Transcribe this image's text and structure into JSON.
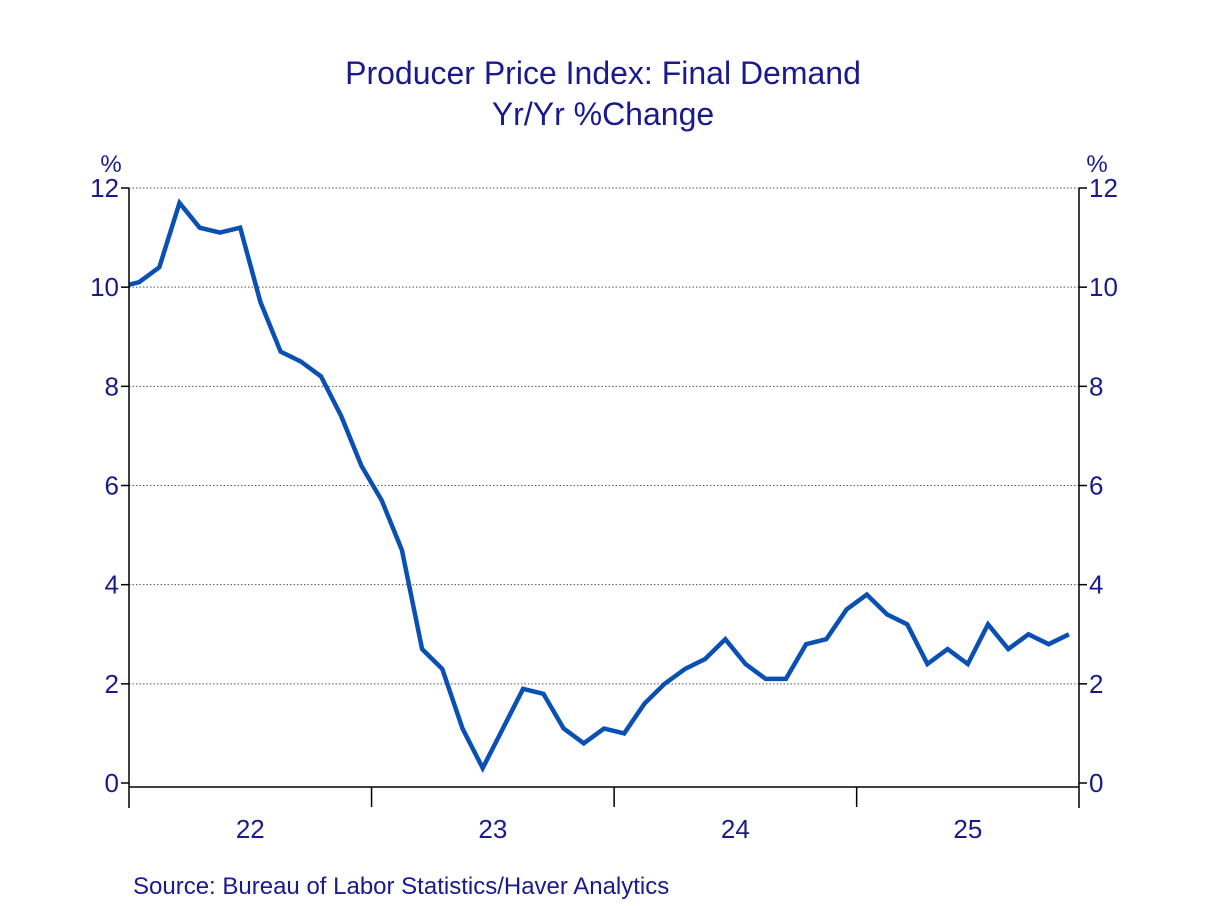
{
  "chart_data": {
    "type": "line",
    "title": "Producer Price Index: Final Demand",
    "subtitle": "Yr/Yr %Change",
    "ylabel_left": "%",
    "ylabel_right": "%",
    "ylim": [
      0,
      12
    ],
    "yticks": [
      0,
      2,
      4,
      6,
      8,
      10,
      12
    ],
    "xtick_labels": [
      "22",
      "23",
      "24",
      "25"
    ],
    "grid": true,
    "line_color": "#0a50b4",
    "source": "Source:  Bureau of Labor Statistics/Haver Analytics",
    "x": [
      "2021-12",
      "2022-01",
      "2022-02",
      "2022-03",
      "2022-04",
      "2022-05",
      "2022-06",
      "2022-07",
      "2022-08",
      "2022-09",
      "2022-10",
      "2022-11",
      "2022-12",
      "2023-01",
      "2023-02",
      "2023-03",
      "2023-04",
      "2023-05",
      "2023-06",
      "2023-07",
      "2023-08",
      "2023-09",
      "2023-10",
      "2023-11",
      "2023-12",
      "2024-01",
      "2024-02",
      "2024-03",
      "2024-04",
      "2024-05",
      "2024-06",
      "2024-07",
      "2024-08",
      "2024-09",
      "2024-10",
      "2024-11",
      "2024-12",
      "2025-01",
      "2025-02",
      "2025-03",
      "2025-04",
      "2025-05",
      "2025-06",
      "2025-07",
      "2025-08",
      "2025-09",
      "2025-10",
      "2025-11"
    ],
    "values": [
      10.0,
      10.1,
      10.4,
      11.7,
      11.2,
      11.1,
      11.2,
      9.7,
      8.7,
      8.5,
      8.2,
      7.4,
      6.4,
      5.7,
      4.7,
      2.7,
      2.3,
      1.1,
      0.3,
      1.1,
      1.9,
      1.8,
      1.1,
      0.8,
      1.1,
      1.0,
      1.6,
      2.0,
      2.3,
      2.5,
      2.9,
      2.4,
      2.1,
      2.1,
      2.8,
      2.9,
      3.5,
      3.8,
      3.4,
      3.2,
      2.4,
      2.7,
      2.4,
      3.2,
      2.7,
      3.0,
      2.8,
      3.0
    ]
  }
}
